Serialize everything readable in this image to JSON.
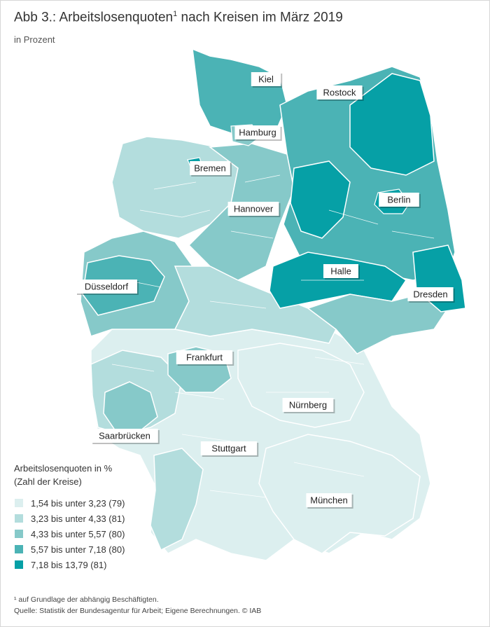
{
  "header": {
    "title": "Abb 3.: Arbeitslosenquoten",
    "title_sup": "1",
    "title_rest": " nach Kreisen im März 2019",
    "subtitle": "in Prozent"
  },
  "map": {
    "cities": [
      {
        "name": "Kiel"
      },
      {
        "name": "Rostock"
      },
      {
        "name": "Hamburg"
      },
      {
        "name": "Bremen"
      },
      {
        "name": "Berlin"
      },
      {
        "name": "Hannover"
      },
      {
        "name": "Halle"
      },
      {
        "name": "Düsseldorf"
      },
      {
        "name": "Dresden"
      },
      {
        "name": "Frankfurt"
      },
      {
        "name": "Nürnberg"
      },
      {
        "name": "Saarbrücken"
      },
      {
        "name": "Stuttgart"
      },
      {
        "name": "München"
      }
    ]
  },
  "legend": {
    "title_line1": "Arbeitslosenquoten in %",
    "title_line2": "(Zahl der Kreise)",
    "items": [
      {
        "label": "1,54 bis unter 3,23 (79)",
        "color": "#dcefef"
      },
      {
        "label": "3,23 bis unter 4,33 (81)",
        "color": "#b3dddd"
      },
      {
        "label": "4,33 bis unter 5,57 (80)",
        "color": "#86c9c9"
      },
      {
        "label": "5,57 bis unter 7,18 (80)",
        "color": "#4bb3b5"
      },
      {
        "label": "7,18 bis 13,79 (81)",
        "color": "#06a0a6"
      }
    ]
  },
  "footer": {
    "note": "¹ auf Grundlage der abhängig Beschäftigten.",
    "source": "Quelle: Statistik der Bundesagentur für Arbeit; Eigene Berechnungen. © IAB"
  }
}
